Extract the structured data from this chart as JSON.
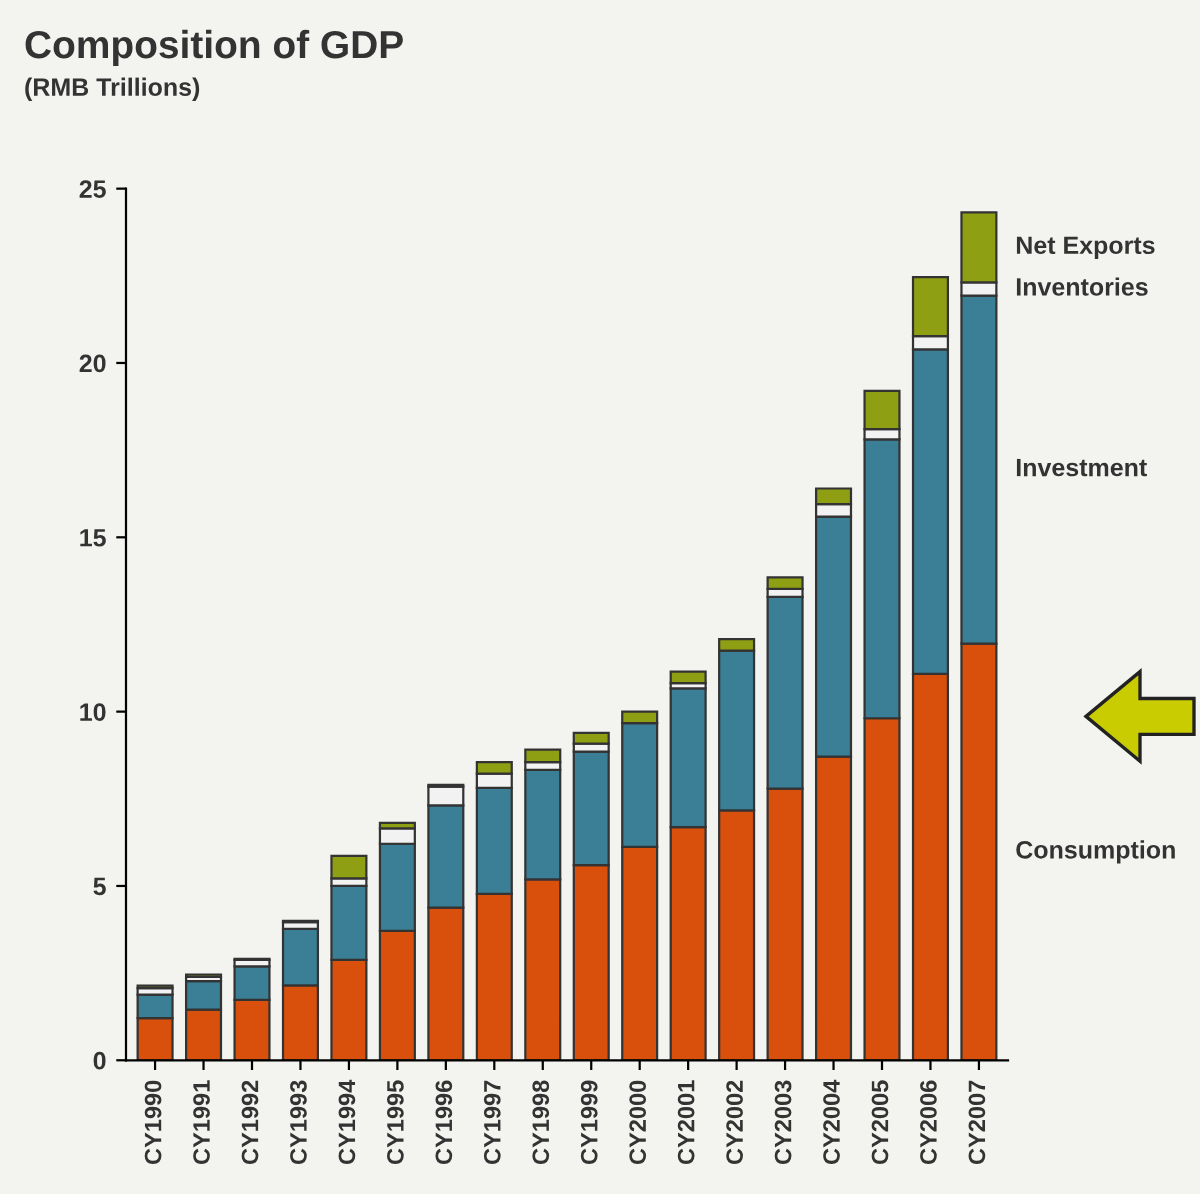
{
  "chart_data": {
    "type": "bar",
    "title": "Composition of GDP",
    "subtitle": "(RMB Trillions)",
    "stacked": true,
    "categories": [
      "CY1990",
      "CY1991",
      "CY1992",
      "CY1993",
      "CY1994",
      "CY1995",
      "CY1996",
      "CY1997",
      "CY1998",
      "CY1999",
      "CY2000",
      "CY2001",
      "CY2002",
      "CY2003",
      "CY2004",
      "CY2005",
      "CY2006",
      "CY2007"
    ],
    "series": [
      {
        "name": "Consumption",
        "color": "#d94f0c",
        "values": [
          1.21,
          1.45,
          1.73,
          2.15,
          2.88,
          3.71,
          4.38,
          4.77,
          5.19,
          5.6,
          6.12,
          6.69,
          7.17,
          7.79,
          8.71,
          9.81,
          11.08,
          11.95
        ]
      },
      {
        "name": "Investment",
        "color": "#3b7f96",
        "values": [
          0.67,
          0.82,
          0.96,
          1.62,
          2.12,
          2.5,
          2.93,
          3.04,
          3.14,
          3.25,
          3.55,
          3.98,
          4.58,
          5.5,
          6.88,
          8.0,
          9.31,
          9.98
        ]
      },
      {
        "name": "Inventories",
        "color": "#f2f2f2",
        "values": [
          0.19,
          0.12,
          0.19,
          0.19,
          0.22,
          0.44,
          0.54,
          0.41,
          0.22,
          0.23,
          null,
          0.15,
          null,
          0.23,
          0.36,
          0.29,
          0.38,
          0.38
        ]
      },
      {
        "name": "Net Exports",
        "color": "#8f9f14",
        "values": [
          0.07,
          0.07,
          0.03,
          0.04,
          0.64,
          0.16,
          0.05,
          0.33,
          0.36,
          0.31,
          0.33,
          0.33,
          0.33,
          0.33,
          0.45,
          1.1,
          1.69,
          2.01
        ]
      }
    ],
    "ylim": [
      0,
      25
    ],
    "yticks": [
      0,
      5,
      10,
      15,
      20,
      25
    ],
    "grid": false,
    "legend": false
  }
}
